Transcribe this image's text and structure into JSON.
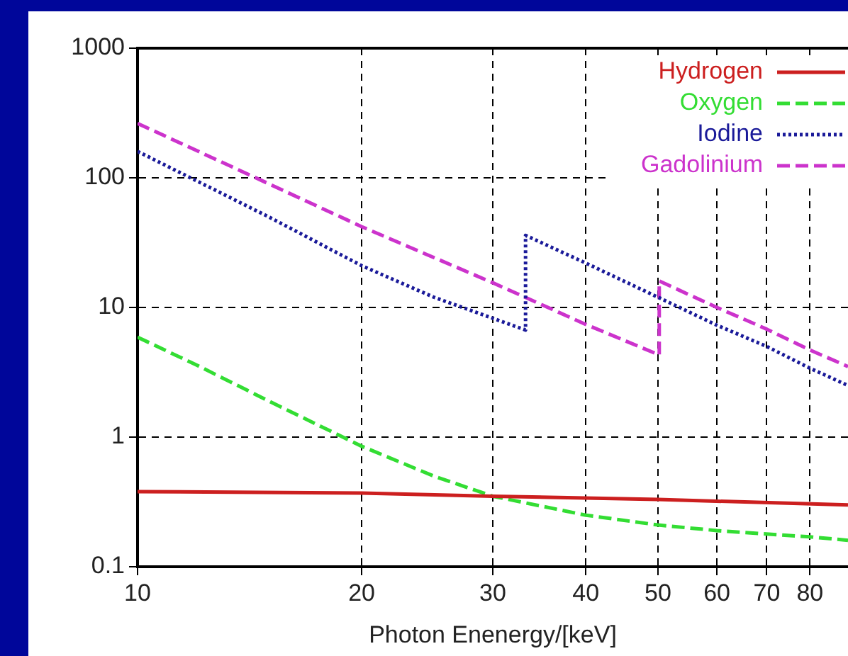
{
  "chart_data": {
    "type": "line",
    "xlabel": "Photon Enenergy/[keV]",
    "log": "xy",
    "xlim": [
      10,
      90
    ],
    "xticks": [
      10,
      20,
      30,
      40,
      50,
      60,
      70,
      80
    ],
    "ylim": [
      0.1,
      1000
    ],
    "yticks": [
      0.1,
      1,
      10,
      100,
      1000
    ],
    "grid": true,
    "legend": "top right",
    "marker": "none",
    "series": [
      {
        "name": "Hydrogen",
        "color": "#cc1f1f",
        "line_style": "solid",
        "x": [
          10,
          20,
          30,
          50,
          90
        ],
        "values": [
          0.38,
          0.37,
          0.35,
          0.33,
          0.3
        ]
      },
      {
        "name": "Oxygen",
        "color": "#33dd33",
        "line_style": "dashed",
        "x": [
          10,
          12,
          15,
          20,
          25,
          30,
          40,
          50,
          60,
          80,
          90
        ],
        "values": [
          5.9,
          3.6,
          1.9,
          0.85,
          0.5,
          0.35,
          0.25,
          0.21,
          0.19,
          0.17,
          0.16
        ]
      },
      {
        "name": "Iodine",
        "color": "#1a1a99",
        "line_style": "dotted",
        "x": [
          10,
          15,
          20,
          25,
          33.2,
          33.2,
          40,
          50,
          60,
          70,
          80,
          90
        ],
        "values": [
          160,
          50,
          21,
          12,
          6.7,
          36,
          22,
          12,
          7.3,
          5,
          3.4,
          2.5
        ]
      },
      {
        "name": "Gadolinium",
        "color": "#cc33cc",
        "line_style": "dashed",
        "x": [
          10,
          15,
          20,
          30,
          40,
          50.2,
          50.2,
          60,
          70,
          80,
          90
        ],
        "values": [
          263,
          90,
          42,
          15.5,
          7.4,
          4.3,
          16,
          10,
          6.8,
          4.7,
          3.5
        ]
      }
    ]
  }
}
